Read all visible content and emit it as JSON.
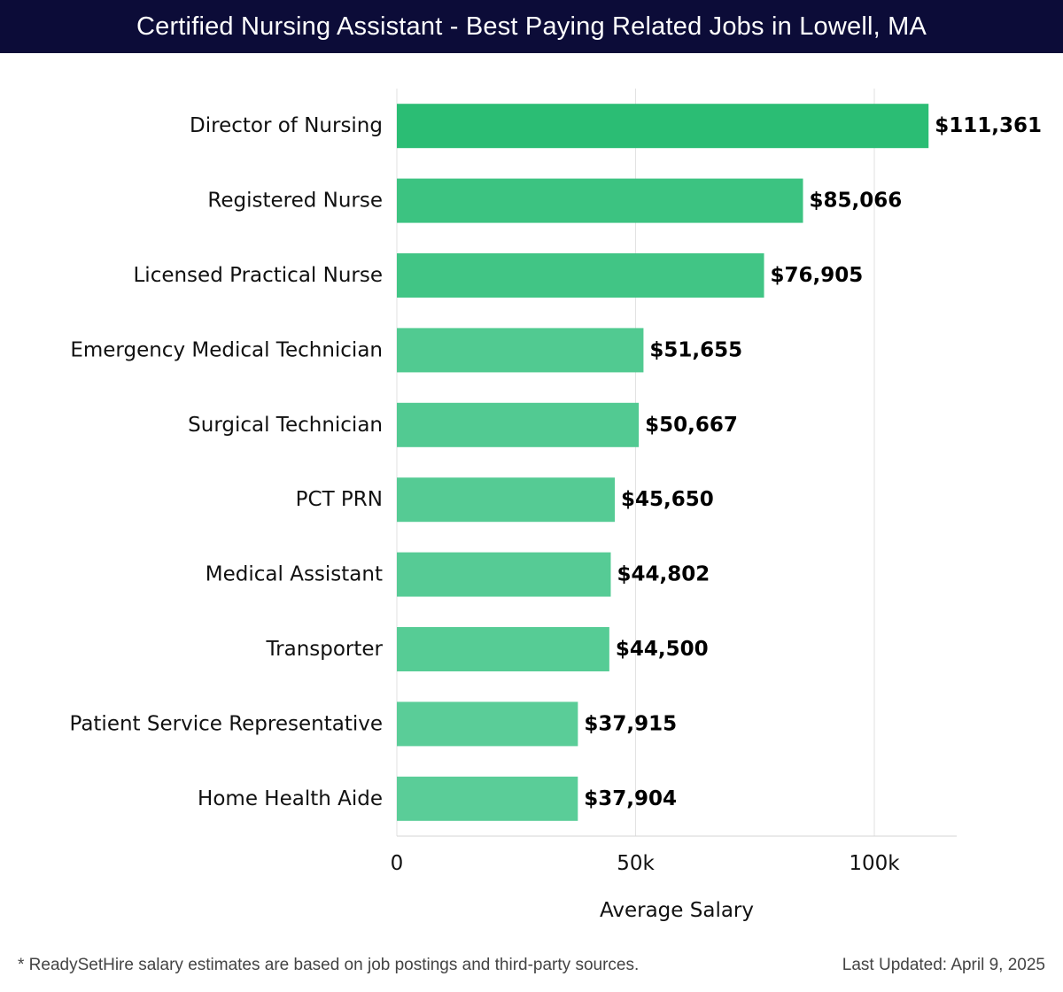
{
  "title": "Certified Nursing Assistant - Best Paying Related Jobs in Lowell, MA",
  "footnote": "* ReadySetHire salary estimates are based on job postings and third-party sources.",
  "last_updated": "Last Updated: April 9, 2025",
  "chart_data": {
    "type": "bar",
    "orientation": "horizontal",
    "categories": [
      "Director of Nursing",
      "Registered Nurse",
      "Licensed Practical Nurse",
      "Emergency Medical Technician",
      "Surgical Technician",
      "PCT PRN",
      "Medical Assistant",
      "Transporter",
      "Patient Service Representative",
      "Home Health Aide"
    ],
    "values": [
      111361,
      85066,
      76905,
      51655,
      50667,
      45650,
      44802,
      44500,
      37915,
      37904
    ],
    "value_labels": [
      "$111,361",
      "$85,066",
      "$76,905",
      "$51,655",
      "$50,667",
      "$45,650",
      "$44,802",
      "$44,500",
      "$37,915",
      "$37,904"
    ],
    "xlabel": "Average Salary",
    "ylabel": "",
    "xlim": [
      0,
      117000
    ],
    "xticks": [
      0,
      50000,
      100000
    ],
    "xtick_labels": [
      "0",
      "50k",
      "100k"
    ],
    "grid": "vertical",
    "colors": {
      "bar_high": "#2bbd74",
      "bar_low": "#5acd98",
      "grid": "#e2e2e2",
      "title_bg": "#0c0c38"
    }
  }
}
